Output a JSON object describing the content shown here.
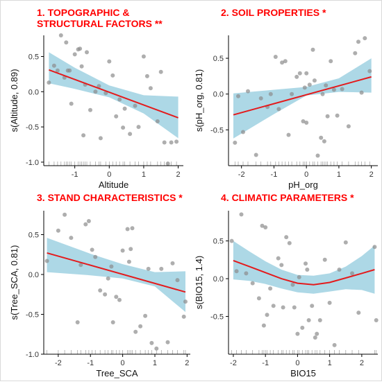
{
  "figure": {
    "title_color": "#ff0000"
  },
  "colors": {
    "band": "#add8e6",
    "fit": "#e41a1c",
    "points": "#8c8c8c",
    "axis": "#000000",
    "rug": "#9a9a9a"
  },
  "chart_data": [
    {
      "type": "scatter",
      "title_lines": [
        "1. TOPOGRAPHIC &",
        "STRUCTURAL FACTORS **"
      ],
      "xlabel": "Altitude",
      "ylabel": "s(Altitude, 0.89)",
      "xlim": [
        -1.9,
        2.15
      ],
      "ylim": [
        -1.05,
        0.8
      ],
      "xticks": [
        -1,
        0,
        1,
        2
      ],
      "yticks": [
        -1.0,
        -0.5,
        0.0,
        0.5
      ],
      "ytick_labels": [
        "-1.0",
        "-0.5",
        "0.0",
        "0.5"
      ],
      "fit": {
        "x": [
          -1.75,
          2.0
        ],
        "y": [
          0.31,
          -0.37
        ]
      },
      "band": {
        "x": [
          -1.75,
          -1.0,
          0.0,
          1.0,
          2.0
        ],
        "upper": [
          0.56,
          0.34,
          0.09,
          -0.05,
          -0.07
        ],
        "lower": [
          0.12,
          0.04,
          -0.08,
          -0.31,
          -0.66
        ]
      },
      "points": {
        "x": [
          -1.75,
          -1.6,
          -1.5,
          -1.4,
          -1.3,
          -1.25,
          -1.2,
          -1.15,
          -1.1,
          -1.0,
          -0.9,
          -0.85,
          -0.75,
          -0.7,
          -0.65,
          -0.55,
          -0.4,
          -0.3,
          -0.25,
          -0.1,
          0.0,
          0.1,
          0.2,
          0.3,
          0.45,
          0.6,
          0.75,
          0.85,
          1.0,
          1.1,
          1.2,
          1.4,
          1.5,
          1.6,
          1.7,
          1.8,
          1.95,
          -0.8,
          0.4
        ],
        "y": [
          0.13,
          0.37,
          0.3,
          0.8,
          0.2,
          0.7,
          0.3,
          0.3,
          -0.17,
          0.53,
          0.6,
          0.61,
          -0.62,
          0.1,
          0.56,
          -0.26,
          0.0,
          0.08,
          -0.66,
          -0.02,
          0.43,
          0.23,
          -0.35,
          -0.11,
          -0.24,
          -0.6,
          -0.2,
          -0.5,
          0.5,
          0.22,
          0.05,
          -0.42,
          0.28,
          -0.72,
          -1.02,
          -0.72,
          -0.71,
          0.36,
          -0.51
        ]
      }
    },
    {
      "type": "scatter",
      "title_lines": [
        "2. SOIL PROPERTIES *"
      ],
      "xlabel": "pH_org",
      "ylabel": "s(pH_org, 0.81)",
      "xlim": [
        -2.4,
        2.2
      ],
      "ylim": [
        -1.0,
        0.82
      ],
      "xticks": [
        -2,
        -1,
        0,
        1,
        2
      ],
      "yticks": [
        -0.5,
        0.0,
        0.5
      ],
      "ytick_labels": [
        "-0.5",
        "0.0",
        "0.5"
      ],
      "fit": {
        "x": [
          -2.25,
          2.0
        ],
        "y": [
          -0.29,
          0.24
        ]
      },
      "band": {
        "x": [
          -2.25,
          -1.0,
          0.0,
          1.0,
          2.0
        ],
        "upper": [
          0.01,
          0.06,
          0.1,
          0.22,
          0.5
        ],
        "lower": [
          -0.62,
          -0.28,
          -0.02,
          0.03,
          0.02
        ]
      },
      "points": {
        "x": [
          -2.2,
          -2.1,
          -1.95,
          -1.8,
          -1.55,
          -1.4,
          -1.2,
          -0.95,
          -0.85,
          -0.75,
          -0.65,
          -0.55,
          -0.45,
          -0.3,
          -0.2,
          -0.1,
          -0.05,
          0.0,
          0.1,
          0.2,
          0.25,
          0.35,
          0.45,
          0.5,
          0.55,
          0.65,
          0.75,
          0.85,
          0.95,
          1.1,
          1.3,
          1.5,
          1.6,
          1.7,
          1.8,
          1.95,
          -1.1,
          0.0,
          0.6
        ],
        "y": [
          -0.68,
          -0.03,
          -0.53,
          0.04,
          -0.85,
          -0.06,
          -0.18,
          0.52,
          -0.21,
          0.44,
          0.46,
          -0.57,
          0.0,
          0.24,
          0.29,
          -0.38,
          0.09,
          -0.4,
          0.13,
          0.62,
          0.19,
          -0.86,
          -0.61,
          0.0,
          -0.66,
          -0.31,
          0.46,
          0.06,
          -0.3,
          0.07,
          -0.45,
          0.57,
          0.73,
          0.02,
          0.78,
          0.32,
          0.0,
          0.29,
          0.12
        ]
      }
    },
    {
      "type": "scatter",
      "title_lines": [
        "3. STAND CHARACTERISTICS *"
      ],
      "xlabel": "Tree_SCA",
      "ylabel": "s(Tree_SCA, 0.81)",
      "xlim": [
        -2.45,
        2.1
      ],
      "ylim": [
        -1.0,
        0.8
      ],
      "xticks": [
        -2,
        -1,
        0,
        1,
        2
      ],
      "yticks": [
        -1.0,
        -0.5,
        0.0,
        0.5
      ],
      "ytick_labels": [
        "-1.0",
        "-0.5",
        "0.0",
        "0.5"
      ],
      "fit": {
        "x": [
          -2.35,
          1.95
        ],
        "y": [
          0.27,
          -0.22
        ]
      },
      "band": {
        "x": [
          -2.35,
          -1.0,
          0.0,
          1.0,
          1.95
        ],
        "upper": [
          0.46,
          0.26,
          0.13,
          0.03,
          0.04
        ],
        "lower": [
          0.03,
          -0.01,
          -0.05,
          -0.15,
          -0.47
        ]
      },
      "points": {
        "x": [
          -2.35,
          -2.0,
          -1.8,
          -1.6,
          -1.4,
          -1.3,
          -1.15,
          -1.05,
          -0.95,
          -0.85,
          -0.7,
          -0.55,
          -0.45,
          -0.35,
          -0.2,
          -0.1,
          0.0,
          0.15,
          0.2,
          0.3,
          0.4,
          0.55,
          0.7,
          0.8,
          0.9,
          1.05,
          1.2,
          1.4,
          1.55,
          1.7,
          1.9,
          1.95,
          -0.3,
          0.25
        ],
        "y": [
          0.17,
          0.55,
          0.75,
          0.46,
          -0.6,
          0.12,
          0.63,
          0.67,
          0.31,
          0.22,
          -0.2,
          -0.25,
          -0.05,
          0.1,
          -0.28,
          -0.32,
          0.3,
          0.57,
          0.16,
          0.58,
          -0.72,
          -0.65,
          -0.52,
          0.07,
          -0.86,
          -0.93,
          0.07,
          -0.85,
          0.14,
          -0.07,
          -0.53,
          -0.34,
          -0.6,
          0.32
        ]
      }
    },
    {
      "type": "scatter",
      "title_lines": [
        "4. CLIMATIC PARAMETERS *"
      ],
      "xlabel": "BIO15",
      "ylabel": "s(BIO15, 1.4)",
      "xlim": [
        -2.15,
        2.5
      ],
      "ylim": [
        -1.0,
        0.9
      ],
      "xticks": [
        -2,
        -1,
        0,
        1,
        2
      ],
      "yticks": [
        -0.5,
        0.0,
        0.5
      ],
      "ytick_labels": [
        "-0.5",
        "0.0",
        "0.5"
      ],
      "fit": {
        "x": [
          -2.0,
          -1.5,
          -1.0,
          -0.5,
          0.0,
          0.5,
          1.0,
          1.5,
          2.0,
          2.4
        ],
        "y": [
          0.24,
          0.16,
          0.08,
          0.0,
          -0.06,
          -0.08,
          -0.05,
          0.01,
          0.07,
          0.12
        ]
      },
      "band": {
        "x": [
          -2.0,
          -1.5,
          -1.0,
          -0.5,
          0.0,
          0.5,
          1.0,
          1.5,
          2.0,
          2.4
        ],
        "upper": [
          0.5,
          0.36,
          0.23,
          0.12,
          0.05,
          0.04,
          0.07,
          0.16,
          0.3,
          0.44
        ],
        "lower": [
          -0.01,
          -0.03,
          -0.07,
          -0.13,
          -0.18,
          -0.2,
          -0.17,
          -0.14,
          -0.15,
          -0.2
        ]
      },
      "points": {
        "x": [
          -2.05,
          -1.9,
          -1.75,
          -1.6,
          -1.4,
          -1.2,
          -1.1,
          -1.05,
          -0.95,
          -0.85,
          -0.75,
          -0.6,
          -0.5,
          -0.45,
          -0.35,
          -0.25,
          -0.15,
          -0.1,
          0.0,
          0.05,
          0.15,
          0.25,
          0.35,
          0.45,
          0.55,
          0.7,
          0.85,
          1.0,
          1.15,
          1.3,
          1.5,
          1.7,
          1.9,
          2.4,
          2.45,
          -1.0,
          0.6,
          0.3
        ],
        "y": [
          0.5,
          0.1,
          0.85,
          0.07,
          -0.06,
          -0.26,
          0.7,
          -0.62,
          -0.48,
          -0.13,
          -0.36,
          0.27,
          0.18,
          -0.38,
          0.55,
          0.47,
          -0.08,
          -0.38,
          -0.73,
          0.02,
          -0.65,
          0.2,
          -0.55,
          -0.36,
          -0.78,
          -0.55,
          0.25,
          -0.32,
          -0.88,
          0.12,
          0.48,
          0.07,
          -0.45,
          0.42,
          -0.55,
          0.68,
          -0.73,
          0.12
        ]
      }
    }
  ]
}
